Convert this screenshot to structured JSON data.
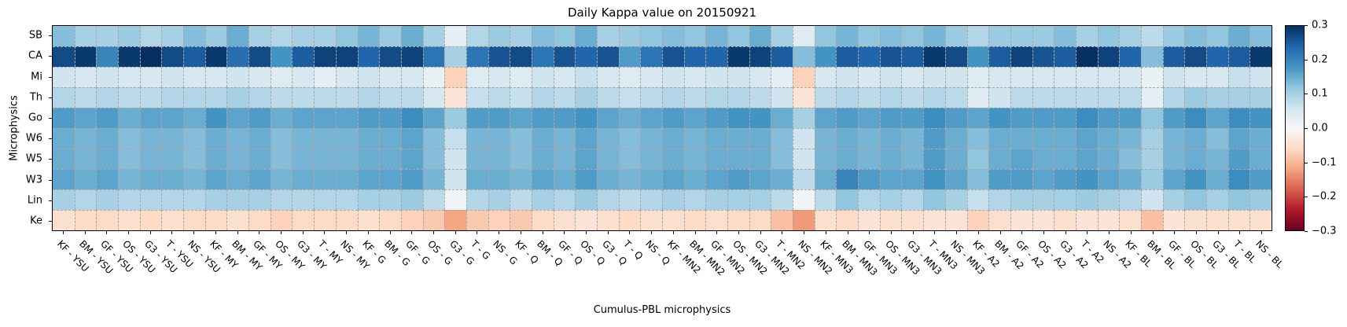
{
  "chart_data": {
    "type": "heatmap",
    "title": "Daily Kappa value on 20150921",
    "xlabel": "Cumulus-PBL microphysics",
    "ylabel": "Microphysics",
    "vmin": -0.3,
    "vmax": 0.3,
    "colormap": "RdBu",
    "colormap_stops": [
      "#67001f",
      "#b2182b",
      "#d6604d",
      "#f4a582",
      "#fddbc7",
      "#f7f7f7",
      "#d1e5f0",
      "#92c5de",
      "#4393c3",
      "#2166ac",
      "#053061"
    ],
    "grid_dash_color": "#a8a8a8",
    "rows": [
      "SB",
      "CA",
      "Mi",
      "Th",
      "Go",
      "W6",
      "W5",
      "W3",
      "Lin",
      "Ke"
    ],
    "columns": [
      "KF - YSU",
      "BM - YSU",
      "GF - YSU",
      "OS - YSU",
      "G3 - YSU",
      "T - YSU",
      "NS - YSU",
      "KF - MY",
      "BM - MY",
      "GF - MY",
      "OS - MY",
      "G3 - MY",
      "T - MY",
      "NS - MY",
      "KF - G",
      "BM - G",
      "GF - G",
      "OS - G",
      "G3 - G",
      "T - G",
      "NS - G",
      "KF - Q",
      "BM - Q",
      "GF - Q",
      "OS - Q",
      "G3 - Q",
      "T - Q",
      "NS - Q",
      "KF - MN2",
      "BM - MN2",
      "GF - MN2",
      "OS - MN2",
      "G3 - MN2",
      "T - MN2",
      "NS - MN2",
      "KF - MN3",
      "BM - MN3",
      "GF - MN3",
      "OS - MN3",
      "G3 - MN3",
      "T - MN3",
      "NS - MN3",
      "KF - A2",
      "BM - A2",
      "GF - A2",
      "OS - A2",
      "G3 - A2",
      "T - A2",
      "NS - A2",
      "KF - BL",
      "BM - BL",
      "GF - BL",
      "OS - BL",
      "G3 - BL",
      "T - BL",
      "NS - BL"
    ],
    "values": [
      [
        0.13,
        0.1,
        0.1,
        0.11,
        0.09,
        0.1,
        0.13,
        0.11,
        0.15,
        0.1,
        0.09,
        0.1,
        0.1,
        0.12,
        0.14,
        0.11,
        0.15,
        0.1,
        0.03,
        0.09,
        0.11,
        0.1,
        0.13,
        0.12,
        0.15,
        0.1,
        0.11,
        0.12,
        0.13,
        0.12,
        0.14,
        0.12,
        0.15,
        0.1,
        0.04,
        0.12,
        0.14,
        0.12,
        0.13,
        0.12,
        0.14,
        0.11,
        0.09,
        0.11,
        0.11,
        0.11,
        0.13,
        0.1,
        0.12,
        0.1,
        0.08,
        0.11,
        0.13,
        0.12,
        0.15,
        0.13
      ],
      [
        0.27,
        0.29,
        0.2,
        0.29,
        0.3,
        0.27,
        0.25,
        0.29,
        0.23,
        0.27,
        0.18,
        0.25,
        0.28,
        0.28,
        0.24,
        0.27,
        0.28,
        0.22,
        0.1,
        0.22,
        0.26,
        0.27,
        0.22,
        0.26,
        0.24,
        0.26,
        0.17,
        0.22,
        0.26,
        0.24,
        0.24,
        0.29,
        0.28,
        0.25,
        0.13,
        0.18,
        0.25,
        0.24,
        0.26,
        0.25,
        0.29,
        0.27,
        0.18,
        0.25,
        0.28,
        0.26,
        0.25,
        0.3,
        0.28,
        0.24,
        0.13,
        0.25,
        0.27,
        0.24,
        0.25,
        0.29
      ],
      [
        0.06,
        0.05,
        0.06,
        0.05,
        0.05,
        0.06,
        0.05,
        0.05,
        0.06,
        0.05,
        0.04,
        0.05,
        0.03,
        0.05,
        0.06,
        0.05,
        0.05,
        0.02,
        -0.07,
        0.04,
        0.05,
        0.04,
        0.06,
        0.05,
        0.07,
        0.05,
        0.04,
        0.05,
        0.06,
        0.05,
        0.06,
        0.06,
        0.05,
        0.03,
        -0.07,
        0.05,
        0.06,
        0.05,
        0.06,
        0.05,
        0.06,
        0.06,
        0.04,
        0.05,
        0.05,
        0.05,
        0.05,
        0.05,
        0.05,
        0.05,
        0.02,
        0.06,
        0.05,
        0.05,
        0.07,
        0.06
      ],
      [
        0.09,
        0.08,
        0.09,
        0.08,
        0.08,
        0.09,
        0.09,
        0.09,
        0.1,
        0.09,
        0.08,
        0.08,
        0.08,
        0.08,
        0.09,
        0.08,
        0.08,
        0.05,
        -0.04,
        0.07,
        0.08,
        0.07,
        0.09,
        0.08,
        0.1,
        0.08,
        0.07,
        0.08,
        0.09,
        0.08,
        0.09,
        0.09,
        0.08,
        0.06,
        -0.04,
        0.08,
        0.09,
        0.08,
        0.09,
        0.08,
        0.09,
        0.08,
        0.04,
        0.06,
        0.08,
        0.08,
        0.08,
        0.08,
        0.08,
        0.08,
        0.03,
        0.09,
        0.11,
        0.1,
        0.1,
        0.1
      ],
      [
        0.17,
        0.16,
        0.17,
        0.15,
        0.16,
        0.16,
        0.15,
        0.18,
        0.16,
        0.17,
        0.15,
        0.16,
        0.16,
        0.16,
        0.17,
        0.17,
        0.19,
        0.16,
        0.11,
        0.17,
        0.17,
        0.16,
        0.17,
        0.17,
        0.18,
        0.16,
        0.15,
        0.16,
        0.17,
        0.16,
        0.17,
        0.18,
        0.18,
        0.15,
        0.1,
        0.16,
        0.17,
        0.16,
        0.17,
        0.17,
        0.19,
        0.17,
        0.16,
        0.18,
        0.17,
        0.17,
        0.17,
        0.19,
        0.17,
        0.17,
        0.12,
        0.17,
        0.19,
        0.16,
        0.19,
        0.18
      ],
      [
        0.15,
        0.14,
        0.15,
        0.13,
        0.14,
        0.14,
        0.13,
        0.15,
        0.14,
        0.15,
        0.13,
        0.14,
        0.14,
        0.14,
        0.15,
        0.15,
        0.16,
        0.13,
        0.07,
        0.14,
        0.14,
        0.13,
        0.15,
        0.14,
        0.16,
        0.14,
        0.13,
        0.14,
        0.15,
        0.14,
        0.15,
        0.15,
        0.15,
        0.13,
        0.06,
        0.14,
        0.15,
        0.14,
        0.15,
        0.14,
        0.17,
        0.15,
        0.13,
        0.15,
        0.15,
        0.15,
        0.15,
        0.16,
        0.15,
        0.14,
        0.1,
        0.14,
        0.15,
        0.13,
        0.16,
        0.15
      ],
      [
        0.15,
        0.14,
        0.15,
        0.13,
        0.14,
        0.14,
        0.13,
        0.15,
        0.14,
        0.15,
        0.13,
        0.14,
        0.14,
        0.14,
        0.15,
        0.15,
        0.16,
        0.13,
        0.06,
        0.14,
        0.14,
        0.13,
        0.15,
        0.14,
        0.16,
        0.14,
        0.13,
        0.14,
        0.15,
        0.14,
        0.15,
        0.15,
        0.15,
        0.13,
        0.06,
        0.14,
        0.15,
        0.14,
        0.15,
        0.14,
        0.17,
        0.15,
        0.12,
        0.15,
        0.16,
        0.15,
        0.15,
        0.16,
        0.15,
        0.13,
        0.1,
        0.14,
        0.15,
        0.14,
        0.17,
        0.15
      ],
      [
        0.16,
        0.15,
        0.16,
        0.14,
        0.15,
        0.15,
        0.14,
        0.16,
        0.15,
        0.16,
        0.14,
        0.15,
        0.15,
        0.15,
        0.16,
        0.16,
        0.17,
        0.14,
        0.06,
        0.15,
        0.15,
        0.14,
        0.16,
        0.15,
        0.17,
        0.15,
        0.14,
        0.15,
        0.16,
        0.15,
        0.16,
        0.17,
        0.16,
        0.15,
        0.08,
        0.15,
        0.2,
        0.17,
        0.16,
        0.16,
        0.18,
        0.16,
        0.13,
        0.17,
        0.17,
        0.16,
        0.17,
        0.18,
        0.16,
        0.15,
        0.11,
        0.16,
        0.18,
        0.15,
        0.19,
        0.17
      ],
      [
        0.1,
        0.09,
        0.1,
        0.09,
        0.09,
        0.09,
        0.09,
        0.1,
        0.1,
        0.1,
        0.09,
        0.09,
        0.09,
        0.09,
        0.1,
        0.1,
        0.11,
        0.08,
        0.01,
        0.09,
        0.1,
        0.08,
        0.1,
        0.09,
        0.11,
        0.09,
        0.08,
        0.09,
        0.1,
        0.09,
        0.1,
        0.1,
        0.1,
        0.08,
        0.01,
        0.08,
        0.12,
        0.09,
        0.1,
        0.09,
        0.12,
        0.1,
        0.07,
        0.09,
        0.1,
        0.1,
        0.1,
        0.11,
        0.1,
        0.09,
        0.06,
        0.1,
        0.12,
        0.1,
        0.12,
        0.11
      ],
      [
        -0.05,
        -0.06,
        -0.06,
        -0.05,
        -0.06,
        -0.05,
        -0.06,
        -0.06,
        -0.05,
        -0.06,
        -0.07,
        -0.06,
        -0.06,
        -0.06,
        -0.05,
        -0.06,
        -0.07,
        -0.08,
        -0.12,
        -0.08,
        -0.07,
        -0.08,
        -0.06,
        -0.05,
        -0.04,
        -0.05,
        -0.06,
        -0.05,
        -0.05,
        -0.06,
        -0.05,
        -0.06,
        -0.06,
        -0.09,
        -0.13,
        -0.05,
        -0.06,
        -0.04,
        -0.05,
        -0.05,
        -0.04,
        -0.04,
        -0.07,
        -0.05,
        -0.04,
        -0.04,
        -0.05,
        -0.04,
        -0.04,
        -0.05,
        -0.09,
        -0.04,
        -0.05,
        -0.05,
        -0.05,
        -0.05
      ]
    ],
    "colorbar_tick_labels": [
      "0.3",
      "0.2",
      "0.1",
      "0.0",
      "−0.1",
      "−0.2",
      "−0.3"
    ],
    "legend_position": "right",
    "grid": true
  }
}
